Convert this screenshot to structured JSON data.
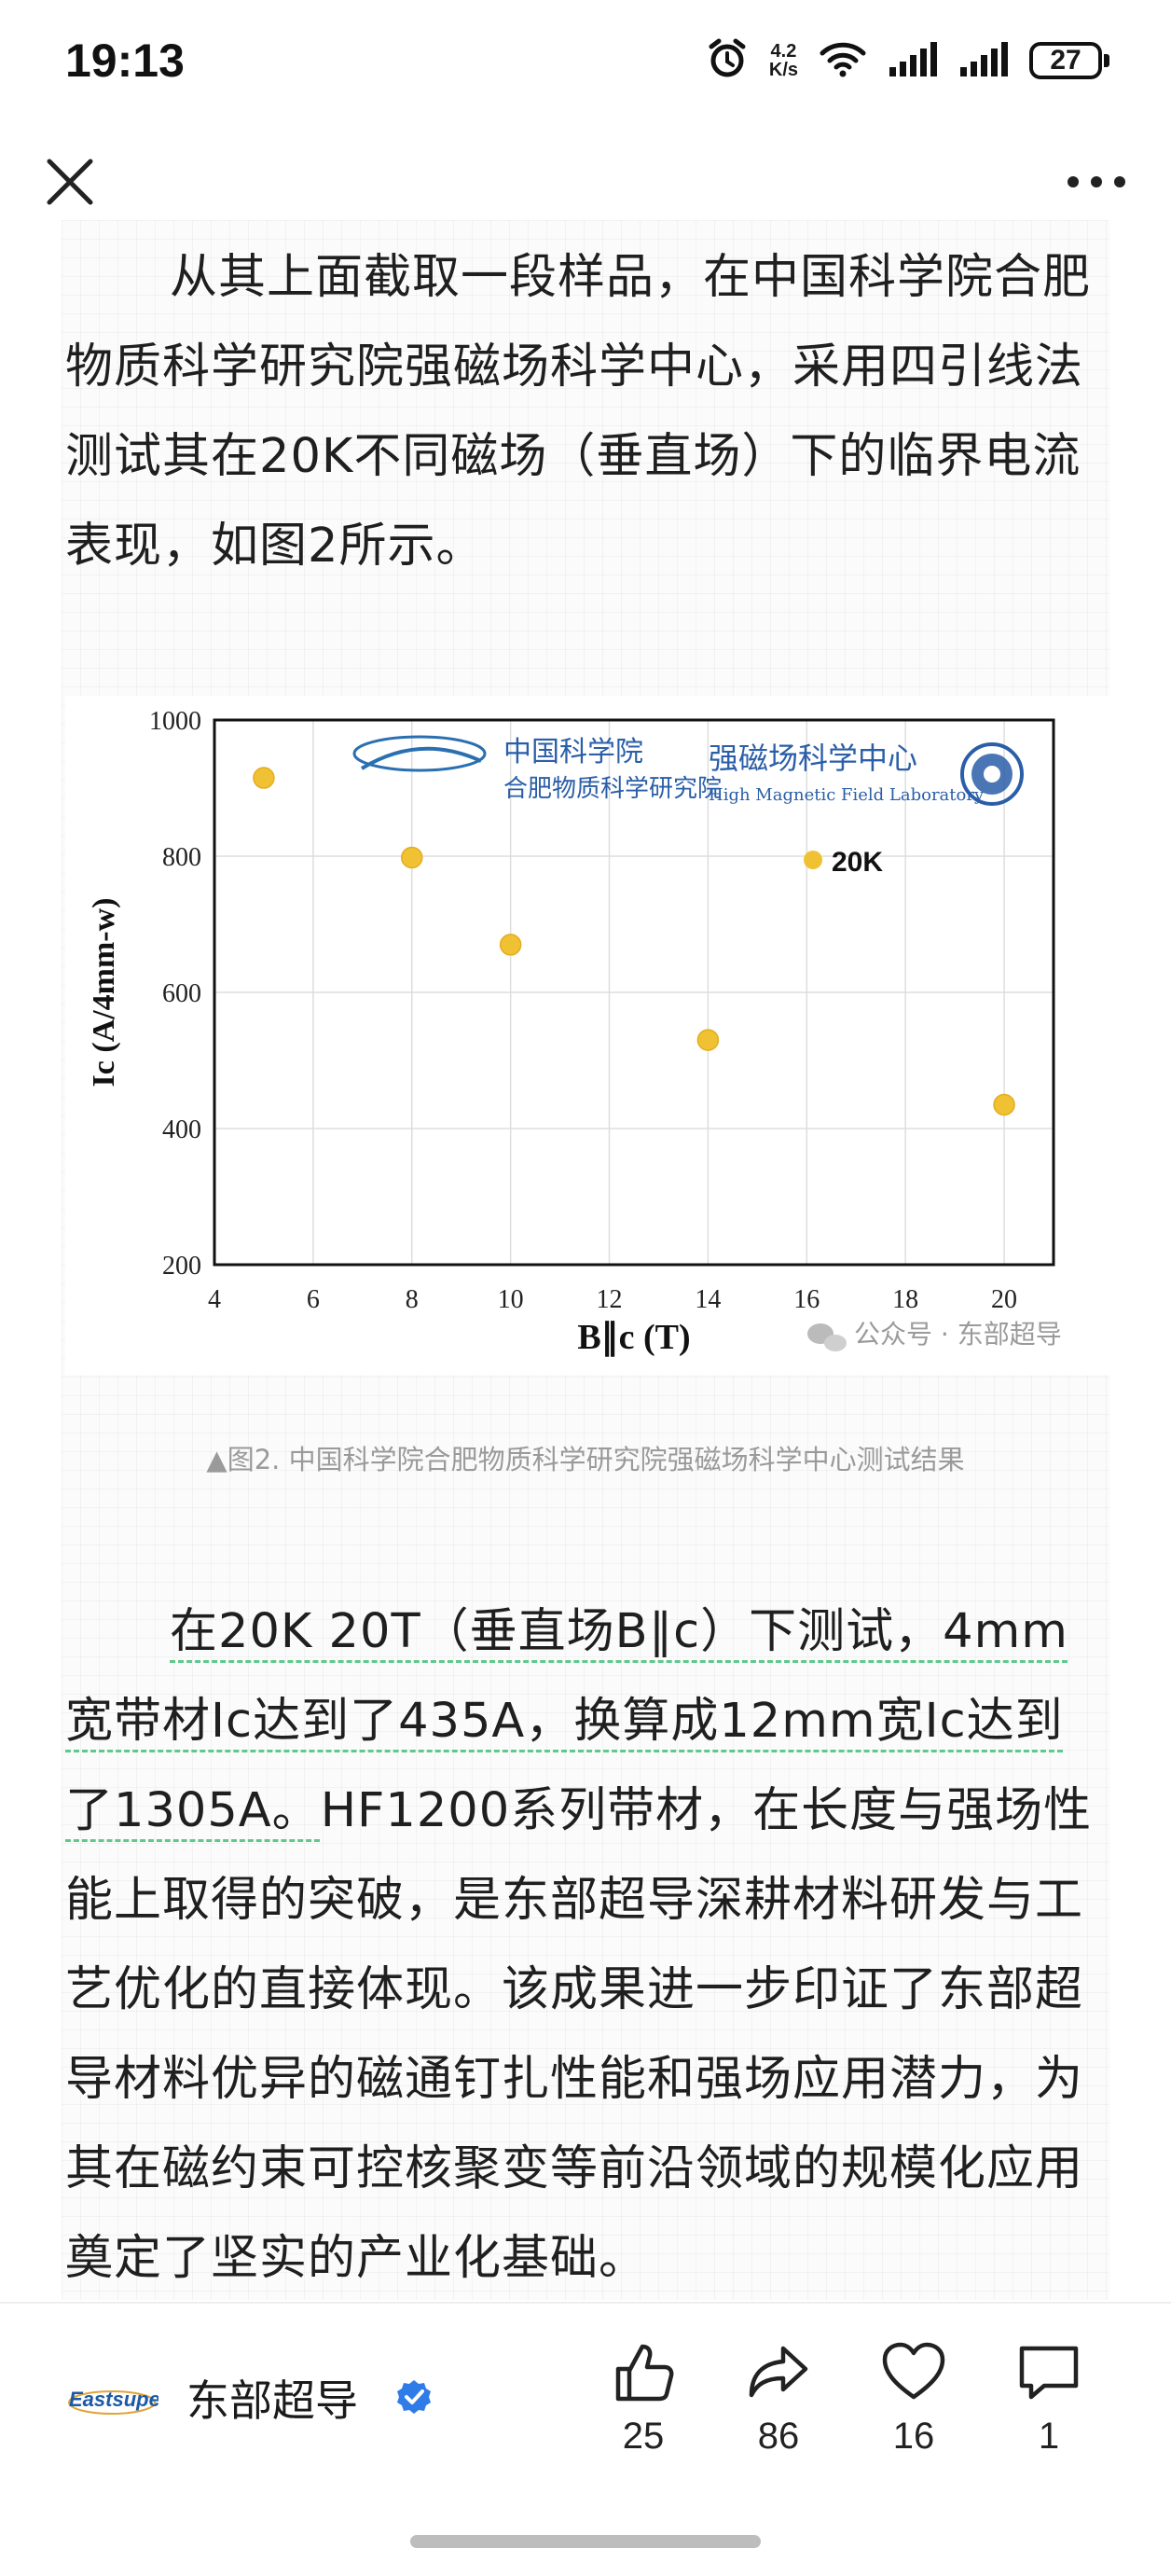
{
  "status_bar": {
    "time": "19:13",
    "net_speed_value": "4.2",
    "net_speed_unit": "K/s",
    "battery": "27"
  },
  "article": {
    "para1": "从其上面截取一段样品，在中国科学院合肥物质科学研究院强磁场科学中心，采用四引线法测试其在20K不同磁场（垂直场）下的临界电流表现，如图2所示。",
    "caption": "▲图2. 中国科学院合肥物质科学研究院强磁场科学中心测试结果",
    "para2_underlined": "在20K 20T（垂直场B∥c）下测试，4mm宽带材Ic达到了435A，换算成12mm宽Ic达到了1305A。",
    "para2_rest": "HF1200系列带材，在长度与强场性能上取得的突破，是东部超导深耕材料研发与工艺优化的直接体现。该成果进一步印证了东部超导材料优异的磁通钉扎性能和强场应用潜力，为其在磁约束可控核聚变等前沿领域的规模化应用奠定了坚实的产业化基础。"
  },
  "figure": {
    "logo_cn_left": "中国科学院",
    "logo_cn_left_sub": "合肥物质科学研究院",
    "logo_cn_right": "强磁场科学中心",
    "logo_en_right": "High Magnetic Field Laboratory",
    "watermark": "公众号 · 东部超导"
  },
  "chart_data": {
    "type": "scatter",
    "xlabel": "B∥c (T)",
    "ylabel": "Ic (A/4mm-w)",
    "xlim": [
      4,
      21
    ],
    "ylim": [
      200,
      1000
    ],
    "xticks": [
      4,
      6,
      8,
      10,
      12,
      14,
      16,
      18,
      20
    ],
    "yticks": [
      200,
      400,
      600,
      800,
      1000
    ],
    "series": [
      {
        "name": "20K",
        "color": "#f0c233",
        "x": [
          5,
          8,
          10,
          14,
          20
        ],
        "y": [
          915,
          798,
          670,
          530,
          435
        ]
      }
    ],
    "legend": "top-right",
    "grid": true
  },
  "bottom_bar": {
    "author_logo_text": "Eastsuper",
    "author_name": "东部超导",
    "like_count": "25",
    "share_count": "86",
    "favorite_count": "16",
    "comment_count": "1"
  }
}
